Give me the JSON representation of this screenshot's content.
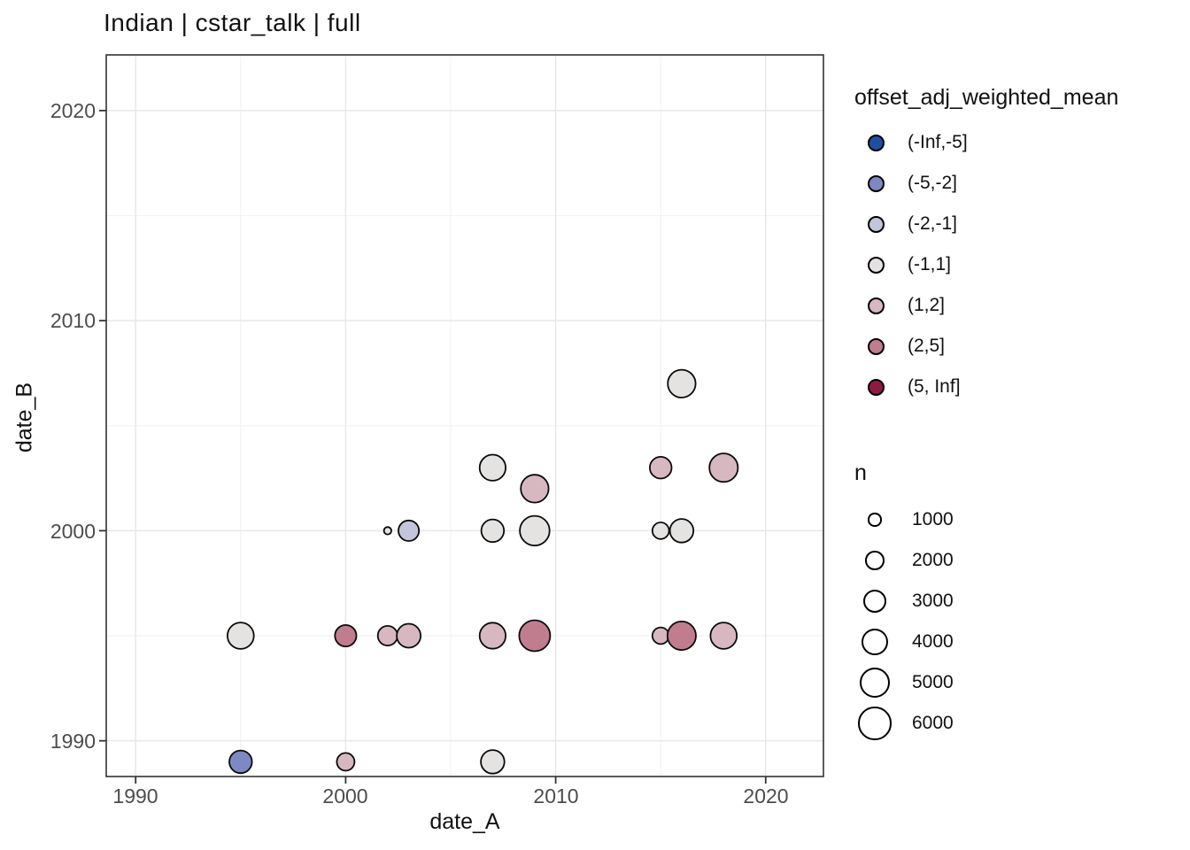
{
  "title": "Indian | cstar_talk | full",
  "x_axis": {
    "label": "date_A",
    "tick_labels": [
      "1990",
      "2000",
      "2010",
      "2020"
    ]
  },
  "y_axis": {
    "label": "date_B",
    "tick_labels": [
      "2020",
      "2010",
      "2000",
      "1990"
    ]
  },
  "legend": {
    "color": {
      "title": "offset_adj_weighted_mean",
      "entries": [
        {
          "label": "(-Inf,-5]",
          "color": "#1e50a2"
        },
        {
          "label": "(-5,-2]",
          "color": "#7e88c2"
        },
        {
          "label": "(-2,-1]",
          "color": "#c3c6db"
        },
        {
          "label": "(-1,1]",
          "color": "#e5e3e2"
        },
        {
          "label": "(1,2]",
          "color": "#d7b7c0"
        },
        {
          "label": "(2,5]",
          "color": "#c07d8e"
        },
        {
          "label": "(5, Inf]",
          "color": "#8c1a43"
        }
      ]
    },
    "size": {
      "title": "n",
      "entries": [
        {
          "label": "1000",
          "value": 1000
        },
        {
          "label": "2000",
          "value": 2000
        },
        {
          "label": "3000",
          "value": 3000
        },
        {
          "label": "4000",
          "value": 4000
        },
        {
          "label": "5000",
          "value": 5000
        },
        {
          "label": "6000",
          "value": 6000
        }
      ]
    }
  },
  "chart_data": {
    "type": "scatter",
    "title": "Indian | cstar_talk | full",
    "xlabel": "date_A",
    "ylabel": "date_B",
    "xlim": [
      1988.6,
      2022.75
    ],
    "ylim": [
      1988.3,
      2022.65
    ],
    "x_major_gridlines": [
      1990,
      2000,
      2010,
      2020
    ],
    "x_minor_gridlines": [
      1995,
      2005,
      2015
    ],
    "y_major_gridlines": [
      1990,
      2000,
      2010,
      2020
    ],
    "y_minor_gridlines": [
      1995,
      2005,
      2015
    ],
    "grid": "on",
    "legend_position": "right",
    "color_by": "offset_adj_weighted_mean",
    "size_by": "n",
    "size_scale_k": 0.242,
    "points": [
      {
        "date_A": 1995,
        "date_B": 1989,
        "n": 2800,
        "offset_bin": "(-5,-2]"
      },
      {
        "date_A": 1995,
        "date_B": 1995,
        "n": 3800,
        "offset_bin": "(-1,1]"
      },
      {
        "date_A": 2000,
        "date_B": 1989,
        "n": 1700,
        "offset_bin": "(1,2]"
      },
      {
        "date_A": 2000,
        "date_B": 1995,
        "n": 2500,
        "offset_bin": "(2,5]"
      },
      {
        "date_A": 2002,
        "date_B": 1995,
        "n": 2100,
        "offset_bin": "(1,2]"
      },
      {
        "date_A": 2002,
        "date_B": 2000,
        "n": 300,
        "offset_bin": "(-1,1]"
      },
      {
        "date_A": 2003,
        "date_B": 1995,
        "n": 3100,
        "offset_bin": "(1,2]"
      },
      {
        "date_A": 2003,
        "date_B": 2000,
        "n": 2300,
        "offset_bin": "(-2,-1]"
      },
      {
        "date_A": 2007,
        "date_B": 1989,
        "n": 3000,
        "offset_bin": "(-1,1]"
      },
      {
        "date_A": 2007,
        "date_B": 1995,
        "n": 3700,
        "offset_bin": "(1,2]"
      },
      {
        "date_A": 2007,
        "date_B": 2000,
        "n": 2800,
        "offset_bin": "(-1,1]"
      },
      {
        "date_A": 2007,
        "date_B": 2003,
        "n": 3700,
        "offset_bin": "(-1,1]"
      },
      {
        "date_A": 2009,
        "date_B": 1995,
        "n": 5200,
        "offset_bin": "(2,5]"
      },
      {
        "date_A": 2009,
        "date_B": 2000,
        "n": 4800,
        "offset_bin": "(-1,1]"
      },
      {
        "date_A": 2009,
        "date_B": 2002,
        "n": 4200,
        "offset_bin": "(1,2]"
      },
      {
        "date_A": 2015,
        "date_B": 1995,
        "n": 1500,
        "offset_bin": "(1,2]"
      },
      {
        "date_A": 2015,
        "date_B": 2000,
        "n": 1500,
        "offset_bin": "(-1,1]"
      },
      {
        "date_A": 2015,
        "date_B": 2003,
        "n": 2600,
        "offset_bin": "(1,2]"
      },
      {
        "date_A": 2016,
        "date_B": 1995,
        "n": 4400,
        "offset_bin": "(2,5]"
      },
      {
        "date_A": 2016,
        "date_B": 2000,
        "n": 3000,
        "offset_bin": "(-1,1]"
      },
      {
        "date_A": 2016,
        "date_B": 2007,
        "n": 4200,
        "offset_bin": "(-1,1]"
      },
      {
        "date_A": 2018,
        "date_B": 1995,
        "n": 3800,
        "offset_bin": "(1,2]"
      },
      {
        "date_A": 2018,
        "date_B": 2003,
        "n": 4400,
        "offset_bin": "(1,2]"
      }
    ]
  }
}
